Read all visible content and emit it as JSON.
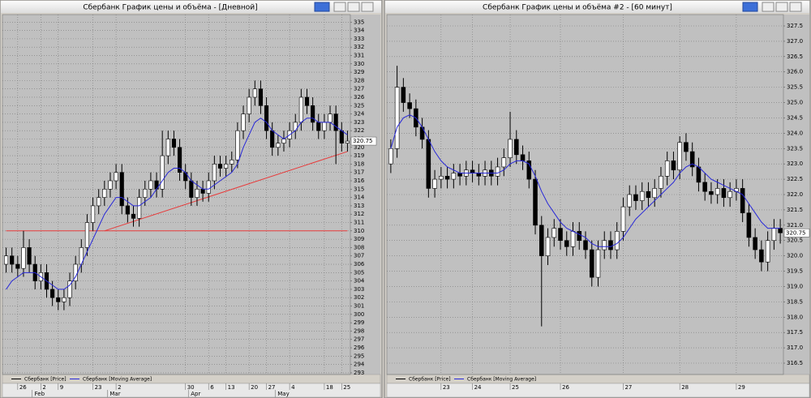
{
  "chart_data": [
    {
      "type": "candlestick",
      "title": "Сбербанк График цены и объёма - [Дневной]",
      "categories": [
        null,
        null,
        "26",
        null,
        null,
        null,
        "2",
        null,
        null,
        "9",
        null,
        null,
        null,
        null,
        null,
        "23",
        null,
        null,
        null,
        "2",
        null,
        null,
        null,
        null,
        null,
        null,
        null,
        null,
        null,
        null,
        null,
        "30",
        null,
        null,
        null,
        "6",
        null,
        null,
        "13",
        null,
        null,
        null,
        "20",
        null,
        null,
        "27",
        null,
        null,
        null,
        "4",
        null,
        null,
        null,
        null,
        null,
        "18",
        null,
        null,
        "25",
        null
      ],
      "months": [
        null,
        null,
        null,
        null,
        null,
        "Feb",
        null,
        null,
        null,
        null,
        null,
        null,
        null,
        null,
        null,
        null,
        null,
        null,
        "Mar",
        null,
        null,
        null,
        null,
        null,
        null,
        null,
        null,
        null,
        null,
        null,
        null,
        null,
        "Apr",
        null,
        null,
        null,
        null,
        null,
        null,
        null,
        null,
        null,
        null,
        null,
        null,
        null,
        null,
        "May",
        null,
        null,
        null,
        null,
        null,
        null,
        null,
        null,
        null,
        null,
        null,
        null
      ],
      "series": [
        {
          "name": "Сбербанк [Price]",
          "color": "#000000",
          "up_color": "#ffffff",
          "open": [
            306,
            307,
            306,
            305.5,
            308,
            306,
            304,
            305,
            303,
            302,
            301.5,
            302,
            304,
            306,
            308,
            311,
            313,
            314,
            315,
            316,
            317,
            313,
            312,
            311.5,
            314,
            315,
            316,
            315,
            319,
            321,
            320,
            317,
            316,
            314,
            315,
            314.5,
            316,
            318,
            317.5,
            318,
            318.5,
            322,
            324,
            326,
            327,
            325,
            322,
            320,
            320.5,
            321,
            322,
            323,
            326,
            325,
            323,
            322,
            323,
            324,
            322,
            320.5
          ],
          "high": [
            308,
            308,
            307,
            310,
            309,
            307,
            306,
            306,
            304,
            303,
            303,
            305,
            307,
            309,
            312,
            314,
            315,
            316,
            317,
            318,
            318,
            314,
            313,
            315,
            316,
            317,
            317,
            322,
            322,
            322,
            321,
            318,
            317,
            316,
            316,
            317,
            319,
            319,
            319,
            319.5,
            323,
            325,
            327,
            328,
            328,
            326,
            323,
            321.5,
            322,
            323,
            324,
            327,
            327,
            326,
            324,
            324,
            325,
            325,
            323,
            322
          ],
          "low": [
            305,
            305,
            304.5,
            304.5,
            305,
            303,
            303,
            302,
            301,
            300.5,
            300.5,
            301,
            303,
            305,
            307,
            310,
            312,
            313,
            314,
            315,
            312,
            311,
            310.5,
            310.5,
            313,
            314,
            314,
            314,
            318,
            319,
            316,
            315,
            313,
            313,
            313.5,
            313.5,
            315,
            316.5,
            316.5,
            317,
            317.5,
            321,
            323,
            325,
            324,
            321,
            319,
            319,
            319.5,
            320,
            321,
            322,
            324,
            322,
            321,
            321,
            322,
            318,
            319.5,
            319.5
          ],
          "close": [
            307,
            306,
            305.5,
            308,
            306,
            304,
            305,
            303,
            302,
            301.5,
            302,
            304,
            306,
            308,
            311,
            313,
            314,
            315,
            316,
            317,
            313,
            312,
            311.5,
            314,
            315,
            316,
            315,
            319,
            321,
            320,
            317,
            316,
            314,
            315,
            314.5,
            316,
            318,
            317.5,
            318,
            318.5,
            322,
            324,
            326,
            327,
            325,
            322,
            320,
            320.5,
            321,
            322,
            323,
            326,
            325,
            323,
            322,
            323,
            324,
            322,
            320.5,
            320.75
          ]
        },
        {
          "name": "Сбербанк [Moving Average]",
          "color": "#2828d8",
          "values": [
            303,
            304,
            304.5,
            305,
            305,
            305,
            304.5,
            304,
            303.5,
            303,
            303,
            303.5,
            304.5,
            306,
            307.5,
            309,
            310.5,
            312,
            313,
            314,
            314,
            313.5,
            313,
            313,
            313.5,
            314,
            315,
            316,
            317,
            317.5,
            317.5,
            317,
            316,
            315.5,
            315,
            315,
            315.5,
            316,
            316.5,
            317,
            318,
            320,
            321.5,
            323,
            323.5,
            323,
            322,
            321.5,
            321,
            321.5,
            322,
            323,
            323.5,
            323.5,
            323,
            323,
            323,
            322.5,
            322,
            321.5
          ]
        }
      ],
      "lines": [
        {
          "color": "#e83a3a",
          "x": [
            0,
            59
          ],
          "y": [
            310,
            310
          ]
        },
        {
          "color": "#e83a3a",
          "x": [
            17,
            59
          ],
          "y": [
            310,
            319.5
          ]
        }
      ],
      "last_price": 320.75,
      "ylim": [
        292.8,
        335.9
      ],
      "yticks": [
        293,
        294,
        295,
        296,
        297,
        298,
        299,
        300,
        301,
        302,
        303,
        304,
        305,
        306,
        307,
        308,
        309,
        310,
        311,
        312,
        313,
        314,
        315,
        316,
        317,
        318,
        319,
        320,
        321,
        322,
        323,
        324,
        325,
        326,
        327,
        328,
        329,
        330,
        331,
        332,
        333,
        334,
        335
      ],
      "grid": true
    },
    {
      "type": "candlestick",
      "title": "Сбербанк График цены и объёма #2 - [60 минут]",
      "categories": [
        null,
        null,
        null,
        null,
        null,
        null,
        null,
        null,
        "23",
        null,
        null,
        null,
        null,
        "24",
        null,
        null,
        null,
        null,
        null,
        "25",
        null,
        null,
        null,
        null,
        null,
        null,
        null,
        "26",
        null,
        null,
        null,
        null,
        null,
        null,
        null,
        null,
        null,
        "27",
        null,
        null,
        null,
        null,
        null,
        null,
        null,
        null,
        "28",
        null,
        null,
        null,
        null,
        null,
        null,
        null,
        null,
        "29",
        null,
        null,
        null,
        null,
        null,
        null,
        null
      ],
      "series": [
        {
          "name": "Сбербанк [Price]",
          "color": "#000000",
          "up_color": "#ffffff",
          "open": [
            323.0,
            323.5,
            325.5,
            325.0,
            324.8,
            324.2,
            323.8,
            322.2,
            322.5,
            322.6,
            322.5,
            322.7,
            322.6,
            322.8,
            322.7,
            322.6,
            322.8,
            322.6,
            322.9,
            323.2,
            323.8,
            323.3,
            323.1,
            322.5,
            321.0,
            320.0,
            320.6,
            320.9,
            320.5,
            320.3,
            320.8,
            320.5,
            320.2,
            319.3,
            320.2,
            320.5,
            320.2,
            320.8,
            321.6,
            322.0,
            321.8,
            322.1,
            321.9,
            322.2,
            322.6,
            323.1,
            322.8,
            323.7,
            323.4,
            322.9,
            322.4,
            322.1,
            322.0,
            322.2,
            321.9,
            322.1,
            322.2,
            321.4,
            320.6,
            320.2,
            319.8,
            320.5,
            320.9
          ],
          "high": [
            323.8,
            326.2,
            325.8,
            325.3,
            325.1,
            324.5,
            324.1,
            322.8,
            322.9,
            322.9,
            323.0,
            323.0,
            323.1,
            323.1,
            323.0,
            323.1,
            323.1,
            323.2,
            323.5,
            324.7,
            324.1,
            323.6,
            323.4,
            322.8,
            321.3,
            320.9,
            321.2,
            321.2,
            320.8,
            321.1,
            321.1,
            320.8,
            320.5,
            320.5,
            320.8,
            320.8,
            321.1,
            321.9,
            322.3,
            322.3,
            322.4,
            322.4,
            322.5,
            322.9,
            323.4,
            323.4,
            323.9,
            324.0,
            323.7,
            323.2,
            322.7,
            322.4,
            322.5,
            322.5,
            322.4,
            322.5,
            322.5,
            321.7,
            320.9,
            320.5,
            320.8,
            321.2,
            321.2
          ],
          "low": [
            322.7,
            323.2,
            324.7,
            324.5,
            323.9,
            323.5,
            321.9,
            321.9,
            322.2,
            322.2,
            322.2,
            322.3,
            322.3,
            322.4,
            322.3,
            322.3,
            322.3,
            322.3,
            322.6,
            322.9,
            323.0,
            322.8,
            322.2,
            320.7,
            317.7,
            319.7,
            320.3,
            320.2,
            320.0,
            320.0,
            320.2,
            319.9,
            319.0,
            319.0,
            319.9,
            319.9,
            319.9,
            320.5,
            321.3,
            321.5,
            321.5,
            321.6,
            321.6,
            321.9,
            322.3,
            322.5,
            322.5,
            323.1,
            322.6,
            322.1,
            321.8,
            321.7,
            321.7,
            321.6,
            321.6,
            321.8,
            321.1,
            320.3,
            319.9,
            319.5,
            319.5,
            320.2,
            320.4
          ],
          "close": [
            323.5,
            325.5,
            325.0,
            324.8,
            324.2,
            323.8,
            322.2,
            322.5,
            322.6,
            322.5,
            322.7,
            322.6,
            322.8,
            322.7,
            322.6,
            322.8,
            322.6,
            322.9,
            323.2,
            323.8,
            323.3,
            323.1,
            322.5,
            321.0,
            320.0,
            320.6,
            320.9,
            320.5,
            320.3,
            320.8,
            320.5,
            320.2,
            319.3,
            320.2,
            320.5,
            320.2,
            320.8,
            321.6,
            322.0,
            321.8,
            322.1,
            321.9,
            322.2,
            322.6,
            323.1,
            322.8,
            323.7,
            323.4,
            322.9,
            322.4,
            322.1,
            322.0,
            322.2,
            321.9,
            322.1,
            322.2,
            321.4,
            320.6,
            320.2,
            319.8,
            320.5,
            320.9,
            320.75
          ]
        },
        {
          "name": "Сбербанк [Moving Average]",
          "color": "#2828d8",
          "values": [
            323.5,
            324.2,
            324.5,
            324.6,
            324.5,
            324.2,
            323.8,
            323.4,
            323.1,
            322.9,
            322.8,
            322.7,
            322.7,
            322.7,
            322.7,
            322.7,
            322.7,
            322.7,
            322.8,
            323.0,
            323.1,
            323.1,
            323.0,
            322.6,
            322.1,
            321.7,
            321.4,
            321.1,
            320.9,
            320.8,
            320.7,
            320.6,
            320.4,
            320.3,
            320.3,
            320.3,
            320.4,
            320.6,
            320.9,
            321.2,
            321.4,
            321.6,
            321.8,
            322.0,
            322.2,
            322.4,
            322.7,
            322.9,
            323.0,
            322.9,
            322.7,
            322.5,
            322.4,
            322.3,
            322.2,
            322.1,
            322.0,
            321.7,
            321.4,
            321.1,
            320.9,
            320.9,
            320.9
          ]
        }
      ],
      "last_price": 320.75,
      "ylim": [
        316.13,
        327.87
      ],
      "yticks": [
        316.5,
        {
          "value": 317,
          "label": "317.0"
        },
        317.5,
        {
          "value": 318,
          "label": "318.0"
        },
        318.5,
        {
          "value": 319,
          "label": "319.0"
        },
        319.5,
        {
          "value": 320,
          "label": "320.0"
        },
        320.5,
        {
          "value": 321,
          "label": "321.0"
        },
        321.5,
        {
          "value": 322,
          "label": "322.0"
        },
        322.5,
        {
          "value": 323,
          "label": "323.0"
        },
        323.5,
        {
          "value": 324,
          "label": "324.0"
        },
        324.5,
        {
          "value": 325,
          "label": "325.0"
        },
        325.5,
        {
          "value": 326,
          "label": "326.0"
        },
        326.5,
        {
          "value": 327,
          "label": "327.0"
        },
        327.5
      ],
      "grid": true
    }
  ]
}
